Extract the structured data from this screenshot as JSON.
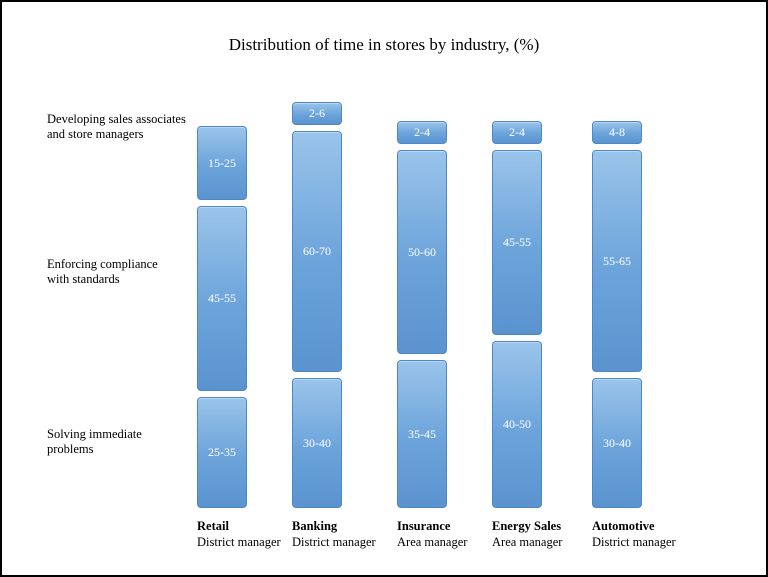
{
  "title": "Distribution of time in stores by industry, (%)",
  "row_labels": [
    {
      "lines": [
        "Developing sales associates",
        "and store managers"
      ]
    },
    {
      "lines": [
        "Enforcing compliance",
        "with standards"
      ]
    },
    {
      "lines": [
        "Solving immediate",
        "problems"
      ]
    }
  ],
  "chart_data": {
    "type": "bar",
    "stacked": true,
    "orientation": "vertical",
    "title": "Distribution of time in stores by industry, (%)",
    "value_unit": "percent range of time",
    "categories": [
      {
        "name": "Retail",
        "role": "District manager"
      },
      {
        "name": "Banking",
        "role": "District manager"
      },
      {
        "name": "Insurance",
        "role": "Area manager"
      },
      {
        "name": "Energy Sales",
        "role": "Area manager"
      },
      {
        "name": "Automotive",
        "role": "District manager"
      }
    ],
    "series": [
      {
        "name": "Developing sales associates and store managers",
        "labels": [
          "15-25",
          "2-6",
          "2-4",
          "2-4",
          "4-8"
        ],
        "midpoints": [
          20,
          4,
          3,
          3,
          6
        ]
      },
      {
        "name": "Enforcing compliance with standards",
        "labels": [
          "45-55",
          "60-70",
          "50-60",
          "45-55",
          "55-65"
        ],
        "midpoints": [
          50,
          65,
          55,
          50,
          60
        ]
      },
      {
        "name": "Solving immediate problems",
        "labels": [
          "25-35",
          "30-40",
          "35-45",
          "40-50",
          "30-40"
        ],
        "midpoints": [
          30,
          35,
          40,
          45,
          35
        ]
      }
    ],
    "colors": {
      "bar_gradient_top": "#9ac4ea",
      "bar_gradient_bottom": "#5b93cf",
      "bar_border": "#4d88c6",
      "value_label": "#ffffff",
      "text": "#000000",
      "frame_border": "#000000"
    },
    "legend": "none",
    "grid": false
  }
}
